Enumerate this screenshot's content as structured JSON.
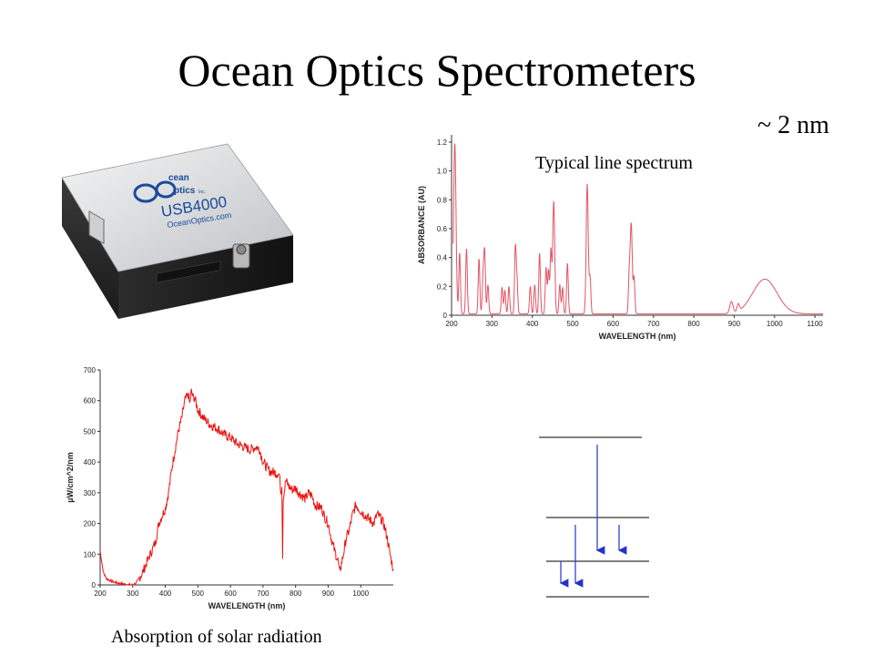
{
  "slide": {
    "title": "Ocean Optics Spectrometers",
    "resolution_label": "~ 2 nm"
  },
  "device": {
    "brand_line1": "cean",
    "brand_line2": "ptics",
    "brand_tm": "Inc.",
    "model": "USB4000",
    "website": "OceanOptics.com"
  },
  "chart_data": [
    {
      "type": "line",
      "caption": "Typical line spectrum",
      "xlabel": "WAVELENGTH (nm)",
      "ylabel": "ABSORBANCE (AU)",
      "xlim": [
        200,
        1120
      ],
      "ylim": [
        0,
        1.25
      ],
      "xticks": [
        "200",
        "300",
        "400",
        "500",
        "600",
        "700",
        "800",
        "900",
        "1000",
        "1100"
      ],
      "yticks": [
        "0",
        "0.2",
        "0.4",
        "0.6",
        "0.8",
        "1.0",
        "1.2"
      ],
      "color": "#e05565",
      "baseline": 0.01,
      "peaks": [
        {
          "x": 208,
          "h": 1.18,
          "w": 3
        },
        {
          "x": 220,
          "h": 0.42,
          "w": 2
        },
        {
          "x": 237,
          "h": 0.45,
          "w": 2
        },
        {
          "x": 268,
          "h": 0.38,
          "w": 2
        },
        {
          "x": 278,
          "h": 0.25,
          "w": 2
        },
        {
          "x": 282,
          "h": 0.42,
          "w": 2
        },
        {
          "x": 290,
          "h": 0.2,
          "w": 2
        },
        {
          "x": 325,
          "h": 0.18,
          "w": 2
        },
        {
          "x": 332,
          "h": 0.16,
          "w": 2
        },
        {
          "x": 342,
          "h": 0.19,
          "w": 2
        },
        {
          "x": 358,
          "h": 0.45,
          "w": 2
        },
        {
          "x": 362,
          "h": 0.22,
          "w": 2
        },
        {
          "x": 395,
          "h": 0.19,
          "w": 2
        },
        {
          "x": 406,
          "h": 0.2,
          "w": 2
        },
        {
          "x": 418,
          "h": 0.42,
          "w": 2
        },
        {
          "x": 434,
          "h": 0.32,
          "w": 2
        },
        {
          "x": 440,
          "h": 0.3,
          "w": 2
        },
        {
          "x": 446,
          "h": 0.44,
          "w": 2
        },
        {
          "x": 453,
          "h": 0.78,
          "w": 2.5
        },
        {
          "x": 468,
          "h": 0.2,
          "w": 2
        },
        {
          "x": 475,
          "h": 0.18,
          "w": 2
        },
        {
          "x": 487,
          "h": 0.35,
          "w": 2
        },
        {
          "x": 536,
          "h": 0.9,
          "w": 2.5
        },
        {
          "x": 543,
          "h": 0.25,
          "w": 2
        },
        {
          "x": 640,
          "h": 0.25,
          "w": 2
        },
        {
          "x": 645,
          "h": 0.62,
          "w": 2.5
        },
        {
          "x": 652,
          "h": 0.25,
          "w": 2
        },
        {
          "x": 893,
          "h": 0.08,
          "w": 4
        },
        {
          "x": 910,
          "h": 0.05,
          "w": 3
        },
        {
          "x": 976,
          "h": 0.24,
          "w": 30
        }
      ]
    },
    {
      "type": "line",
      "caption": "Absorption of solar radiation",
      "xlabel": "WAVELENGTH (nm)",
      "ylabel": "µW/cm^2/nm",
      "xlim": [
        200,
        1100
      ],
      "ylim": [
        0,
        700
      ],
      "xticks": [
        "200",
        "300",
        "400",
        "500",
        "600",
        "700",
        "800",
        "900",
        "1000"
      ],
      "yticks": [
        "0",
        "100",
        "200",
        "300",
        "400",
        "500",
        "600",
        "700"
      ],
      "color": "#ee1111",
      "points": [
        [
          200,
          110
        ],
        [
          210,
          40
        ],
        [
          220,
          20
        ],
        [
          240,
          10
        ],
        [
          260,
          5
        ],
        [
          280,
          2
        ],
        [
          300,
          0
        ],
        [
          310,
          5
        ],
        [
          330,
          40
        ],
        [
          350,
          90
        ],
        [
          370,
          140
        ],
        [
          380,
          200
        ],
        [
          400,
          250
        ],
        [
          410,
          300
        ],
        [
          420,
          380
        ],
        [
          430,
          440
        ],
        [
          440,
          500
        ],
        [
          450,
          540
        ],
        [
          460,
          600
        ],
        [
          470,
          620
        ],
        [
          475,
          590
        ],
        [
          480,
          630
        ],
        [
          485,
          610
        ],
        [
          490,
          610
        ],
        [
          500,
          570
        ],
        [
          520,
          540
        ],
        [
          540,
          520
        ],
        [
          560,
          510
        ],
        [
          580,
          490
        ],
        [
          600,
          480
        ],
        [
          620,
          460
        ],
        [
          640,
          450
        ],
        [
          660,
          440
        ],
        [
          680,
          450
        ],
        [
          690,
          440
        ],
        [
          700,
          400
        ],
        [
          720,
          370
        ],
        [
          740,
          365
        ],
        [
          750,
          360
        ],
        [
          755,
          300
        ],
        [
          758,
          330
        ],
        [
          760,
          90
        ],
        [
          762,
          280
        ],
        [
          770,
          340
        ],
        [
          780,
          320
        ],
        [
          790,
          310
        ],
        [
          800,
          315
        ],
        [
          810,
          300
        ],
        [
          820,
          290
        ],
        [
          830,
          280
        ],
        [
          840,
          300
        ],
        [
          850,
          290
        ],
        [
          860,
          260
        ],
        [
          880,
          250
        ],
        [
          890,
          220
        ],
        [
          900,
          200
        ],
        [
          910,
          150
        ],
        [
          920,
          110
        ],
        [
          930,
          80
        ],
        [
          935,
          40
        ],
        [
          945,
          90
        ],
        [
          955,
          150
        ],
        [
          965,
          180
        ],
        [
          975,
          230
        ],
        [
          985,
          260
        ],
        [
          1000,
          240
        ],
        [
          1010,
          230
        ],
        [
          1020,
          220
        ],
        [
          1030,
          210
        ],
        [
          1040,
          200
        ],
        [
          1050,
          230
        ],
        [
          1060,
          220
        ],
        [
          1070,
          200
        ],
        [
          1080,
          160
        ],
        [
          1090,
          100
        ],
        [
          1100,
          50
        ]
      ]
    }
  ]
}
